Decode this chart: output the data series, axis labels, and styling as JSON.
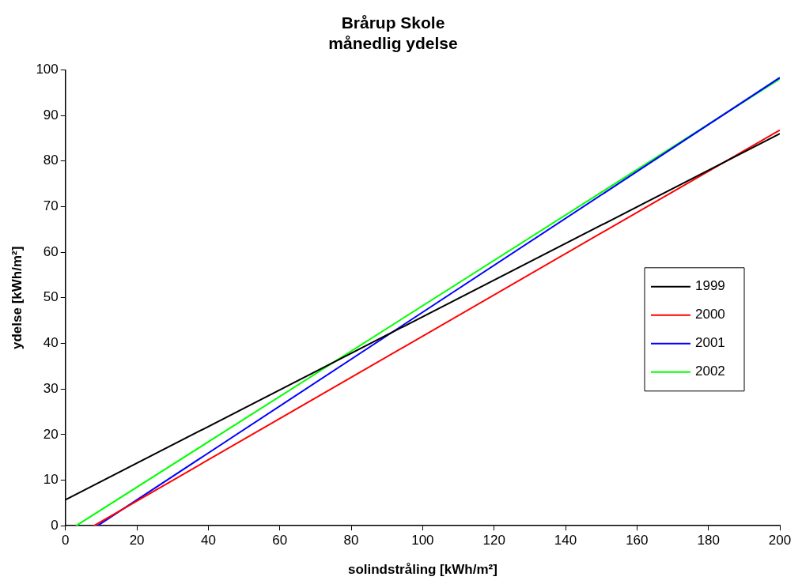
{
  "chart_data": {
    "type": "line",
    "title": "Brårup Skole\nmånedlig ydelse",
    "xlabel": "solindstråling [kWh/m²]",
    "ylabel": "ydelse [kWh/m²]",
    "xlim": [
      0,
      200
    ],
    "xticks": [
      0,
      20,
      40,
      60,
      80,
      100,
      120,
      140,
      160,
      180,
      200
    ],
    "ylim": [
      0,
      100
    ],
    "yticks": [
      0,
      10,
      20,
      30,
      40,
      50,
      60,
      70,
      80,
      90,
      100
    ],
    "grid": false,
    "legend": "right",
    "marker": "none",
    "line_style": "solid",
    "series": [
      {
        "name": "1999",
        "color": "#000000",
        "x": [
          0,
          200
        ],
        "values": [
          5.7,
          86
        ]
      },
      {
        "name": "2000",
        "color": "#ff0000",
        "x": [
          8,
          200
        ],
        "values": [
          0,
          86.8
        ]
      },
      {
        "name": "2001",
        "color": "#0000ff",
        "x": [
          9,
          200
        ],
        "values": [
          0,
          98.3
        ]
      },
      {
        "name": "2002",
        "color": "#00ff00",
        "x": [
          3,
          200
        ],
        "values": [
          0,
          98
        ]
      }
    ]
  }
}
